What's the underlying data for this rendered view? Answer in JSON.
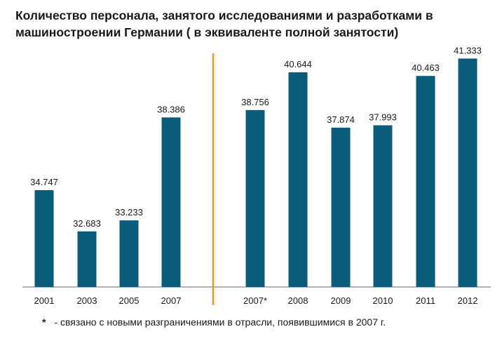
{
  "title_line1": "Количество персонала, занятого исследованиями и разработками в",
  "title_line2": "машиностроении Германии ( в эквиваленте полной занятости)",
  "footnote": {
    "marker": "*",
    "text": "- связано с новыми разграничениями в отрасли, появившимися в 2007 г."
  },
  "colors": {
    "bar": "#0b5b7a",
    "separator": "#e39a2d",
    "axis": "#666666"
  },
  "chart_data": {
    "type": "bar",
    "title": "Количество персонала, занятого исследованиями и разработками в машиностроении Германии ( в эквиваленте полной занятости)",
    "categories": [
      "2001",
      "2003",
      "2005",
      "2007",
      "2007*",
      "2008",
      "2009",
      "2010",
      "2011",
      "2012"
    ],
    "values": [
      34747,
      32683,
      33233,
      38386,
      38756,
      40644,
      37874,
      37993,
      40463,
      41333
    ],
    "value_labels": [
      "34.747",
      "32.683",
      "33.233",
      "38.386",
      "38.756",
      "40.644",
      "37.874",
      "37.993",
      "40.463",
      "41.333"
    ],
    "groups": [
      {
        "categories": [
          "2001",
          "2003",
          "2005",
          "2007"
        ]
      },
      {
        "categories": [
          "2007*",
          "2008",
          "2009",
          "2010",
          "2011",
          "2012"
        ]
      }
    ],
    "xlabel": "",
    "ylabel": "",
    "ylim": [
      29900,
      41700
    ],
    "grid": false,
    "legend": "none"
  }
}
